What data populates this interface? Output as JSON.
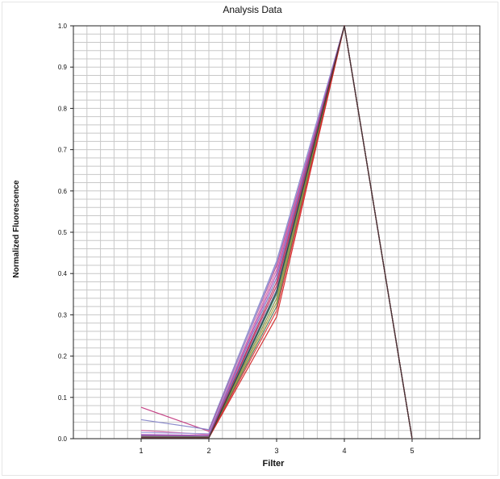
{
  "chart_data": {
    "type": "line",
    "title": "Analysis Data",
    "xlabel": "Filter",
    "ylabel": "Normalized Fluorescence",
    "x": [
      1,
      2,
      3,
      4,
      5
    ],
    "xlim": [
      0,
      6
    ],
    "ylim": [
      0,
      1.0
    ],
    "x_ticks": [
      "1",
      "2",
      "3",
      "4",
      "5"
    ],
    "y_ticks": [
      "0.0",
      "0.1",
      "0.2",
      "0.3",
      "0.4",
      "0.5",
      "0.6",
      "0.7",
      "0.8",
      "0.9",
      "1.0"
    ],
    "grid": true,
    "legend": "none",
    "series": [
      {
        "color": "#c0307a",
        "values": [
          0.076,
          0.018,
          0.42,
          1.0,
          0.0
        ]
      },
      {
        "color": "#8080c8",
        "values": [
          0.046,
          0.022,
          0.43,
          1.0,
          0.0
        ]
      },
      {
        "color": "#d060a0",
        "values": [
          0.02,
          0.01,
          0.41,
          1.0,
          0.0
        ]
      },
      {
        "color": "#9a9ad8",
        "values": [
          0.015,
          0.012,
          0.425,
          1.0,
          0.0
        ]
      },
      {
        "color": "#b040b0",
        "values": [
          0.01,
          0.008,
          0.4,
          1.0,
          0.0
        ]
      },
      {
        "color": "#7070c0",
        "values": [
          0.008,
          0.006,
          0.39,
          1.0,
          0.0
        ]
      },
      {
        "color": "#c02050",
        "values": [
          0.006,
          0.005,
          0.37,
          1.0,
          0.0
        ]
      },
      {
        "color": "#5070a0",
        "values": [
          0.005,
          0.004,
          0.36,
          1.0,
          0.0
        ]
      },
      {
        "color": "#40a080",
        "values": [
          0.004,
          0.004,
          0.35,
          1.0,
          0.0
        ]
      },
      {
        "color": "#808040",
        "values": [
          0.004,
          0.003,
          0.34,
          1.0,
          0.0
        ]
      },
      {
        "color": "#a0a030",
        "values": [
          0.003,
          0.003,
          0.33,
          1.0,
          0.0
        ]
      },
      {
        "color": "#507050",
        "values": [
          0.003,
          0.003,
          0.32,
          1.0,
          0.0
        ]
      },
      {
        "color": "#e03030",
        "values": [
          0.002,
          0.002,
          0.31,
          1.0,
          0.0
        ]
      },
      {
        "color": "#d02020",
        "values": [
          0.002,
          0.002,
          0.295,
          1.0,
          0.0
        ]
      },
      {
        "color": "#b03060",
        "values": [
          0.003,
          0.002,
          0.38,
          1.0,
          0.0
        ]
      },
      {
        "color": "#2f3a36",
        "values": [
          0.002,
          0.002,
          0.355,
          1.0,
          0.0
        ]
      }
    ]
  }
}
